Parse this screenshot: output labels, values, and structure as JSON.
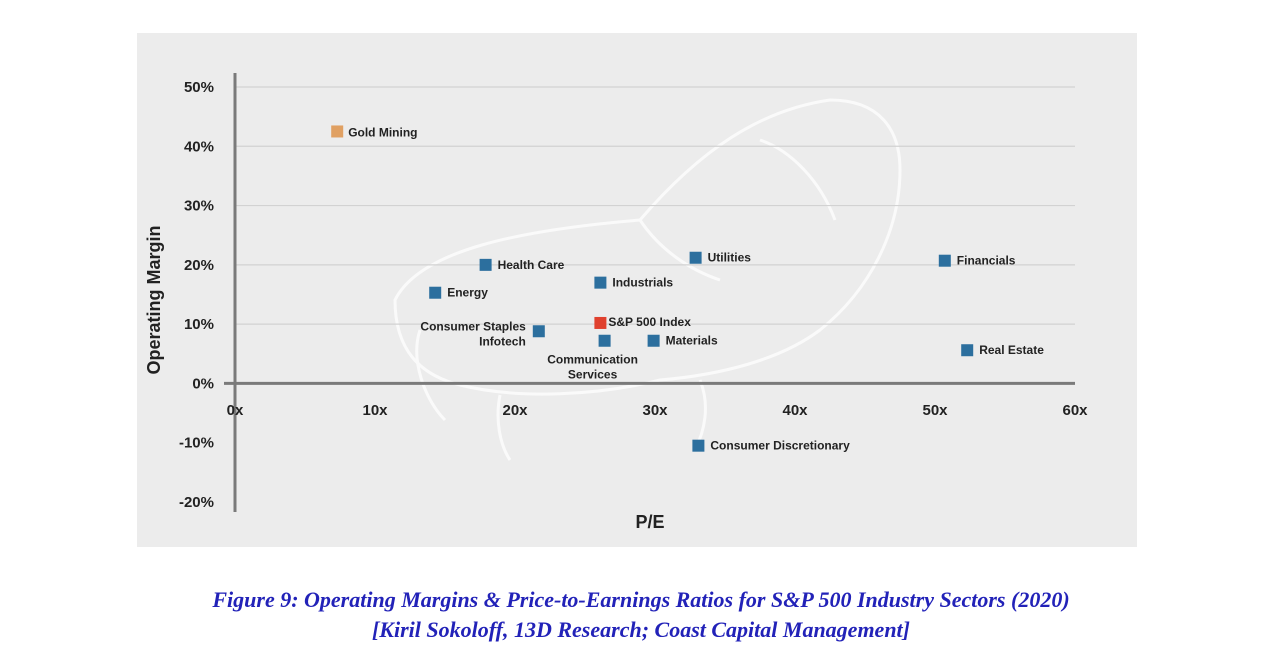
{
  "chart_data": {
    "type": "scatter",
    "xlabel": "P/E",
    "ylabel": "Operating Margin",
    "xlim": [
      0,
      60
    ],
    "ylim": [
      -20,
      50
    ],
    "x_ticks": [
      "0x",
      "10x",
      "20x",
      "30x",
      "40x",
      "50x",
      "60x"
    ],
    "y_ticks": [
      "50%",
      "40%",
      "30%",
      "20%",
      "10%",
      "0%",
      "-10%",
      "-20%"
    ],
    "grid": true,
    "colors": {
      "default": "#2c6f9e",
      "gold": "#e0a062",
      "sp500": "#e0412e"
    },
    "points": [
      {
        "label": "Gold Mining",
        "x": 7.3,
        "y": 42.5,
        "color": "gold"
      },
      {
        "label": "Health Care",
        "x": 17.9,
        "y": 20.0,
        "color": "default"
      },
      {
        "label": "Energy",
        "x": 14.3,
        "y": 15.3,
        "color": "default"
      },
      {
        "label": "Consumer Staples",
        "x": 21.7,
        "y": 8.8,
        "color": "default"
      },
      {
        "label": "Infotech",
        "x": 21.7,
        "y": 8.8,
        "color": "default"
      },
      {
        "label": "Industrials",
        "x": 26.1,
        "y": 17.0,
        "color": "default"
      },
      {
        "label": "S&P 500 Index",
        "x": 26.1,
        "y": 10.2,
        "color": "sp500"
      },
      {
        "label": "Communication Services",
        "x": 26.4,
        "y": 7.2,
        "color": "default"
      },
      {
        "label": "Materials",
        "x": 29.9,
        "y": 7.2,
        "color": "default"
      },
      {
        "label": "Utilities",
        "x": 32.9,
        "y": 21.2,
        "color": "default"
      },
      {
        "label": "Consumer Discretionary",
        "x": 33.1,
        "y": -10.5,
        "color": "default"
      },
      {
        "label": "Financials",
        "x": 50.7,
        "y": 20.7,
        "color": "default"
      },
      {
        "label": "Real Estate",
        "x": 52.3,
        "y": 5.6,
        "color": "default"
      }
    ]
  },
  "caption": {
    "line1": "Figure 9:  Operating Margins & Price-to-Earnings Ratios for S&P 500 Industry Sectors (2020)",
    "line2": "[Kiril Sokoloff, 13D Research; Coast Capital Management]"
  }
}
